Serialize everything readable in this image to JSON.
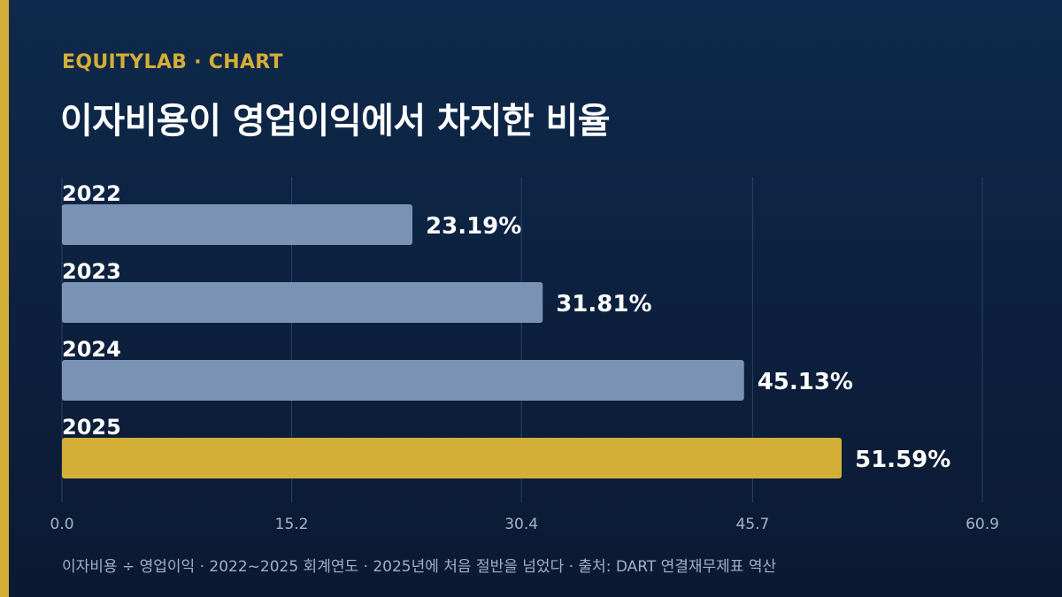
{
  "header": {
    "brand": "EQUITYLAB · CHART",
    "title": "이자비용이 영업이익에서 차지한 비율"
  },
  "footnote": "이자비용 ÷ 영업이익 · 2022~2025 회계연도 · 2025년에 처음 절반을 넘었다 · 출처: DART 연결재무제표 역산",
  "colors": {
    "background": "#0c1f3c",
    "accent": "#d4af37",
    "bar_default": "#7a93b5",
    "bar_highlight": "#d4af37"
  },
  "chart_data": {
    "type": "bar",
    "orientation": "horizontal",
    "categories": [
      "2022",
      "2023",
      "2024",
      "2025"
    ],
    "values": [
      23.19,
      31.81,
      45.13,
      51.59
    ],
    "value_labels": [
      "23.19%",
      "31.81%",
      "45.13%",
      "51.59%"
    ],
    "highlight": "2025",
    "xlim": [
      0,
      60.9
    ],
    "x_ticks": [
      "0.0",
      "15.2",
      "30.4",
      "45.7",
      "60.9"
    ],
    "grid": true,
    "legend": "none"
  }
}
